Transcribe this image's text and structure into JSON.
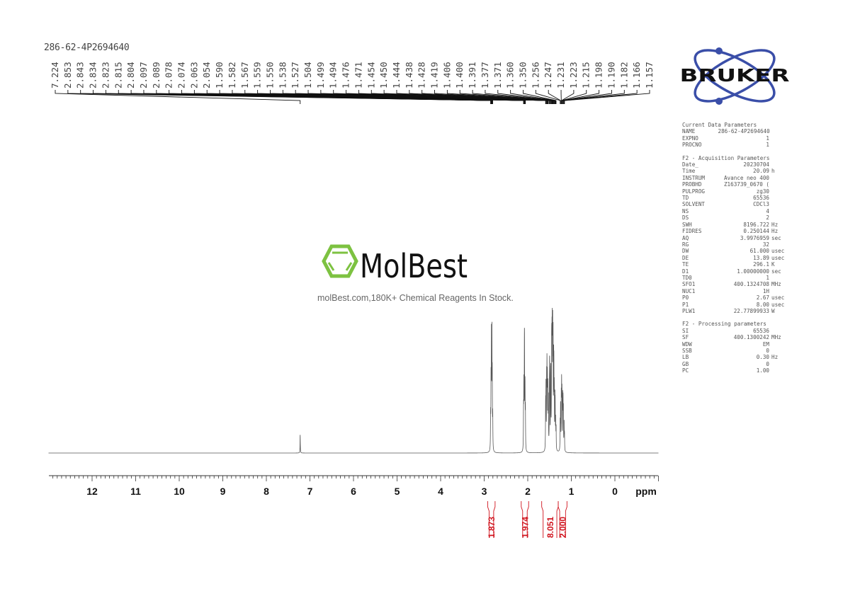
{
  "title": "286-62-4P2694640",
  "watermark": {
    "brand": "MolBest",
    "tagline": "molBest.com,180K+ Chemical Reagents In Stock.",
    "color": "#7dc241"
  },
  "logo": {
    "brand": "BRUKER",
    "color": "#3a4ea8"
  },
  "parameters": {
    "current": {
      "heading": "Current Data Parameters",
      "rows": [
        [
          "NAME",
          "286-62-4P2694640",
          ""
        ],
        [
          "EXPNO",
          "1",
          ""
        ],
        [
          "PROCNO",
          "1",
          ""
        ]
      ]
    },
    "acquisition": {
      "heading": "F2 - Acquisition Parameters",
      "rows": [
        [
          "Date_",
          "20230704",
          ""
        ],
        [
          "Time",
          "20.09",
          "h"
        ],
        [
          "INSTRUM",
          "Avance neo 400",
          ""
        ],
        [
          "PROBHD",
          "Z163739_0670 (",
          ""
        ],
        [
          "PULPROG",
          "zg30",
          ""
        ],
        [
          "TD",
          "65536",
          ""
        ],
        [
          "SOLVENT",
          "CDCl3",
          ""
        ],
        [
          "NS",
          "4",
          ""
        ],
        [
          "DS",
          "2",
          ""
        ],
        [
          "SWH",
          "8196.722",
          "Hz"
        ],
        [
          "FIDRES",
          "0.250144",
          "Hz"
        ],
        [
          "AQ",
          "3.9976959",
          "sec"
        ],
        [
          "RG",
          "32",
          ""
        ],
        [
          "DW",
          "61.000",
          "usec"
        ],
        [
          "DE",
          "13.89",
          "usec"
        ],
        [
          "TE",
          "296.1",
          "K"
        ],
        [
          "D1",
          "1.00000000",
          "sec"
        ],
        [
          "TD0",
          "1",
          ""
        ],
        [
          "SFO1",
          "400.1324708",
          "MHz"
        ],
        [
          "NUC1",
          "1H",
          ""
        ],
        [
          "P0",
          "2.67",
          "usec"
        ],
        [
          "P1",
          "8.00",
          "usec"
        ],
        [
          "PLW1",
          "22.77899933",
          "W"
        ]
      ]
    },
    "processing": {
      "heading": "F2 - Processing parameters",
      "rows": [
        [
          "SI",
          "65536",
          ""
        ],
        [
          "SF",
          "400.1300242",
          "MHz"
        ],
        [
          "WDW",
          "EM",
          ""
        ],
        [
          "SSB",
          "0",
          ""
        ],
        [
          "LB",
          "0.30",
          "Hz"
        ],
        [
          "GB",
          "0",
          ""
        ],
        [
          "PC",
          "1.00",
          ""
        ]
      ]
    }
  },
  "chart_data": {
    "type": "line",
    "xlabel": "ppm",
    "xlim": [
      13.0,
      -1.0
    ],
    "x_reversed": true,
    "xticks": [
      "12",
      "11",
      "10",
      "9",
      "8",
      "7",
      "6",
      "5",
      "4",
      "3",
      "2",
      "1",
      "0"
    ],
    "grid": false,
    "line_color": "#555555",
    "peak_labels": [
      "7.224",
      "2.853",
      "2.843",
      "2.834",
      "2.823",
      "2.815",
      "2.804",
      "2.097",
      "2.089",
      "2.078",
      "2.074",
      "2.063",
      "2.054",
      "1.590",
      "1.582",
      "1.567",
      "1.559",
      "1.550",
      "1.538",
      "1.527",
      "1.504",
      "1.499",
      "1.494",
      "1.476",
      "1.471",
      "1.454",
      "1.450",
      "1.444",
      "1.438",
      "1.428",
      "1.419",
      "1.406",
      "1.400",
      "1.391",
      "1.377",
      "1.371",
      "1.360",
      "1.350",
      "1.256",
      "1.247",
      "1.231",
      "1.223",
      "1.215",
      "1.198",
      "1.190",
      "1.182",
      "1.166",
      "1.157"
    ],
    "peak_intensities": [
      17,
      30,
      60,
      100,
      100,
      60,
      30,
      35,
      55,
      70,
      70,
      55,
      35,
      40,
      55,
      60,
      70,
      60,
      55,
      45,
      40,
      55,
      50,
      50,
      55,
      60,
      60,
      70,
      90,
      100,
      95,
      70,
      60,
      50,
      40,
      35,
      25,
      20,
      25,
      40,
      45,
      55,
      50,
      45,
      40,
      35,
      25,
      15
    ],
    "integrals": [
      {
        "range": [
          2.92,
          2.75
        ],
        "value": "1.873"
      },
      {
        "range": [
          2.15,
          1.98
        ],
        "value": "1.974"
      },
      {
        "range": [
          1.68,
          1.3
        ],
        "value": "8.051"
      },
      {
        "range": [
          1.3,
          1.1
        ],
        "value": "2.000"
      }
    ],
    "integral_color": "#d0141e"
  }
}
